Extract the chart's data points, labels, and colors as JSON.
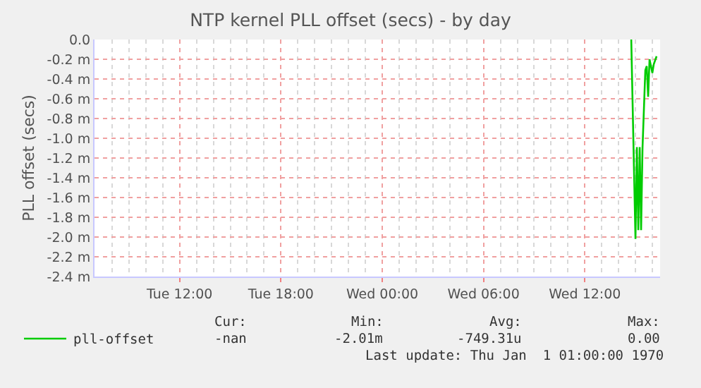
{
  "chart_data": {
    "type": "line",
    "title": "NTP kernel PLL offset (secs) - by day",
    "ylabel": "PLL offset (secs)",
    "categories": [
      null,
      null,
      null,
      null,
      null,
      null,
      null,
      null,
      null,
      null,
      null,
      null,
      null,
      null,
      null,
      null,
      null,
      null,
      null,
      null,
      null,
      null,
      null,
      null,
      null,
      null,
      null,
      null,
      null,
      null,
      null,
      null,
      null,
      null,
      null,
      null,
      null,
      null,
      null,
      null,
      null,
      null,
      null,
      null,
      null,
      null,
      null,
      null,
      null,
      null,
      null,
      null,
      null,
      null,
      null,
      null,
      null,
      null,
      null,
      null,
      "Tue 12:00",
      null,
      null,
      null,
      null,
      null,
      null,
      null,
      null,
      null,
      null,
      null,
      null,
      null,
      null,
      null,
      null,
      null,
      null,
      null,
      null,
      null,
      null,
      null,
      null,
      null,
      null,
      null,
      null,
      null,
      null,
      null,
      null,
      null,
      null,
      null,
      null,
      null,
      null,
      null,
      null,
      null,
      null,
      null,
      null,
      null,
      null,
      null,
      null,
      null,
      null,
      null,
      null,
      null,
      null,
      null,
      null,
      null,
      null,
      null,
      null,
      null,
      null,
      null,
      null,
      null,
      null,
      null,
      null,
      null,
      null,
      null,
      "Tue 18:00",
      null,
      null,
      null,
      null,
      null,
      null,
      null,
      null,
      null,
      null,
      null,
      null,
      null,
      null,
      null,
      null,
      null,
      null,
      null,
      null,
      null,
      null,
      null,
      null,
      null,
      null,
      null,
      null,
      null,
      null,
      null,
      null,
      null,
      null,
      null,
      null,
      null,
      null,
      null,
      null,
      null,
      null,
      null,
      null,
      null,
      null,
      null,
      null,
      null,
      null,
      null,
      null,
      null,
      null,
      null,
      null,
      null,
      null,
      null,
      null,
      null,
      null,
      null,
      null,
      null,
      null,
      null,
      null,
      null,
      null,
      null,
      "Wed 00:00",
      null,
      null,
      null,
      null,
      null,
      null,
      null,
      null,
      null,
      null,
      null,
      null,
      null,
      null,
      null,
      null,
      null,
      null,
      null,
      null,
      null,
      null,
      null,
      null,
      null,
      null,
      null,
      null,
      null,
      null,
      null,
      null,
      null,
      null,
      null,
      null,
      null,
      null,
      null,
      null,
      null,
      null,
      null,
      null,
      null,
      null,
      null,
      null,
      null,
      null,
      null,
      null,
      null,
      null,
      null,
      null,
      null,
      null,
      null,
      null,
      null,
      null,
      null,
      null,
      null,
      null,
      null,
      null,
      null,
      null,
      null,
      "Wed 06:00",
      null,
      null,
      null,
      null,
      null,
      null,
      null,
      null,
      null,
      null,
      null,
      null,
      null,
      null,
      null,
      null,
      null,
      null,
      null,
      null,
      null,
      null,
      null,
      null,
      null,
      null,
      null,
      null,
      null,
      null,
      null,
      null,
      null,
      null,
      null,
      null,
      null,
      null,
      null,
      null,
      null,
      null,
      null,
      null,
      null,
      null,
      null,
      null,
      null,
      null,
      null,
      null,
      null,
      null,
      null,
      null,
      null,
      null,
      null,
      null,
      null,
      null,
      null,
      null,
      null,
      null,
      null,
      null,
      null,
      null,
      null,
      "Wed 12:00",
      null,
      null,
      null,
      null,
      null,
      null,
      null,
      null,
      null,
      null,
      null,
      null,
      null,
      null,
      null,
      null,
      null,
      null,
      null,
      null,
      null,
      null,
      null,
      null,
      null,
      null,
      null,
      null,
      null,
      null,
      null,
      null,
      null,
      null,
      null,
      null,
      null,
      null,
      null,
      null,
      null,
      null,
      null,
      null,
      null,
      null,
      null,
      null,
      null,
      null,
      null,
      null,
      null
    ],
    "ylim": [
      -2.4,
      0
    ],
    "yticks": [
      {
        "value": 0,
        "label": "0.0"
      },
      {
        "value": -0.2,
        "label": "-0.2 m"
      },
      {
        "value": -0.4,
        "label": "-0.4 m"
      },
      {
        "value": -0.6,
        "label": "-0.6 m"
      },
      {
        "value": -0.8,
        "label": "-0.8 m"
      },
      {
        "value": -1.0,
        "label": "-1.0 m"
      },
      {
        "value": -1.2,
        "label": "-1.2 m"
      },
      {
        "value": -1.4,
        "label": "-1.4 m"
      },
      {
        "value": -1.6,
        "label": "-1.6 m"
      },
      {
        "value": -1.8,
        "label": "-1.8 m"
      },
      {
        "value": -2.0,
        "label": "-2.0 m"
      },
      {
        "value": -2.2,
        "label": "-2.2 m"
      },
      {
        "value": -2.4,
        "label": "-2.4 m"
      }
    ],
    "grid": true,
    "legend": "bottom left",
    "series": [
      {
        "name": "pll-offset",
        "color": "#00cc00",
        "values": [
          null,
          null,
          null,
          null,
          null,
          null,
          null,
          null,
          null,
          null,
          null,
          null,
          null,
          null,
          null,
          null,
          null,
          null,
          null,
          null,
          null,
          null,
          null,
          null,
          null,
          null,
          null,
          null,
          null,
          null,
          null,
          null,
          null,
          null,
          null,
          null,
          null,
          null,
          null,
          null,
          null,
          null,
          null,
          null,
          null,
          null,
          null,
          null,
          null,
          null,
          null,
          null,
          null,
          null,
          null,
          null,
          null,
          null,
          null,
          null,
          null,
          null,
          null,
          null,
          null,
          null,
          null,
          null,
          null,
          null,
          null,
          null,
          null,
          null,
          null,
          null,
          null,
          null,
          null,
          null,
          null,
          null,
          null,
          null,
          null,
          null,
          null,
          null,
          null,
          null,
          null,
          null,
          null,
          null,
          null,
          null,
          null,
          null,
          null,
          null,
          null,
          null,
          null,
          null,
          null,
          null,
          null,
          null,
          null,
          null,
          null,
          null,
          null,
          null,
          null,
          null,
          null,
          null,
          null,
          null,
          null,
          null,
          null,
          null,
          null,
          null,
          null,
          null,
          null,
          null,
          null,
          null,
          null,
          null,
          null,
          null,
          null,
          null,
          null,
          null,
          null,
          null,
          null,
          null,
          null,
          null,
          null,
          null,
          null,
          null,
          null,
          null,
          null,
          null,
          null,
          null,
          null,
          null,
          null,
          null,
          null,
          null,
          null,
          null,
          null,
          null,
          null,
          null,
          null,
          null,
          null,
          null,
          null,
          null,
          null,
          null,
          null,
          null,
          null,
          null,
          null,
          null,
          null,
          null,
          null,
          null,
          null,
          null,
          null,
          null,
          null,
          null,
          null,
          null,
          null,
          null,
          null,
          null,
          null,
          null,
          null,
          null,
          null,
          null,
          null,
          null,
          null,
          null,
          null,
          null,
          null,
          null,
          null,
          null,
          null,
          null,
          null,
          null,
          null,
          null,
          null,
          null,
          null,
          null,
          null,
          null,
          null,
          null,
          null,
          null,
          null,
          null,
          null,
          null,
          null,
          null,
          null,
          null,
          null,
          null,
          null,
          null,
          null,
          null,
          null,
          null,
          null,
          null,
          null,
          null,
          null,
          null,
          null,
          null,
          null,
          null,
          null,
          null,
          null,
          null,
          null,
          null,
          null,
          null,
          null,
          null,
          null,
          null,
          null,
          null,
          null,
          null,
          null,
          null,
          null,
          null,
          null,
          null,
          null,
          null,
          null,
          null,
          null,
          null,
          null,
          null,
          null,
          null,
          null,
          null,
          null,
          null,
          null,
          null,
          null,
          null,
          null,
          null,
          null,
          null,
          null,
          null,
          null,
          null,
          null,
          null,
          null,
          null,
          null,
          null,
          null,
          null,
          null,
          null,
          null,
          null,
          null,
          null,
          null,
          null,
          null,
          null,
          null,
          null,
          null,
          null,
          null,
          null,
          null,
          null,
          null,
          null,
          null,
          null,
          null,
          null,
          null,
          null,
          null,
          null,
          null,
          null,
          null,
          null,
          null,
          null,
          null,
          null,
          null,
          null,
          null,
          null,
          null,
          null,
          null,
          null,
          null,
          null,
          null,
          null,
          null,
          null,
          null,
          null,
          null,
          null,
          null,
          null,
          null,
          null,
          null,
          null,
          null,
          null,
          null,
          null,
          null,
          null,
          null,
          null,
          null,
          0,
          null,
          null,
          -2.02,
          -1.09,
          -1.93,
          -1.09,
          -1.93,
          -1.1,
          null,
          -0.31,
          -0.27,
          -0.58,
          -0.2,
          null,
          -0.34,
          -0.25,
          null,
          -0.17,
          null,
          null
        ]
      }
    ],
    "annotations": [
      "Cur:",
      "Min:",
      "Avg:",
      "Max:",
      "-nan",
      "-2.01m",
      "-749.31u",
      "0.00",
      "Last update: Thu Jan  1 01:00:00 1970"
    ]
  }
}
